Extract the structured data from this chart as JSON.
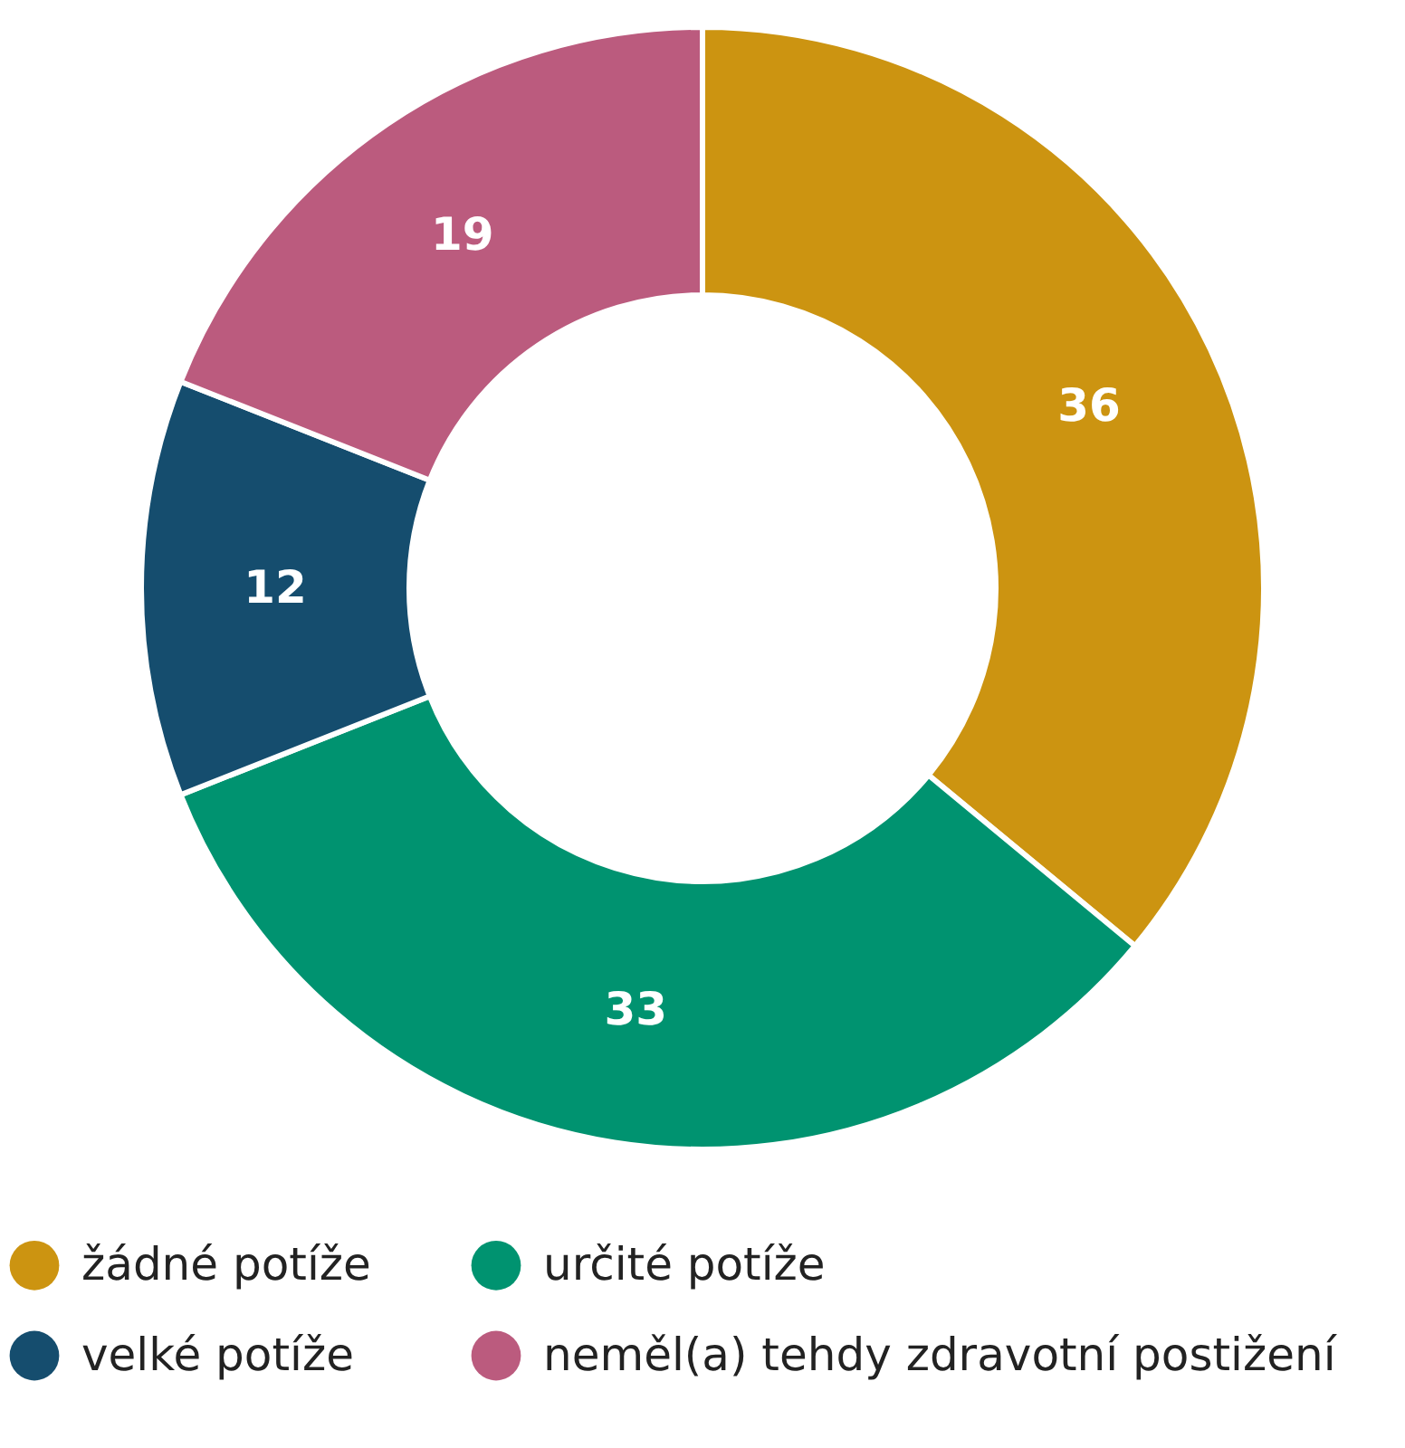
{
  "chart_data": {
    "type": "donut",
    "categories": [
      "žádné potíže",
      "určité potíže",
      "velké potíže",
      "neměl(a) tehdy zdravotní postižení"
    ],
    "values": [
      36,
      33,
      12,
      19
    ],
    "colors": [
      "#cc9411",
      "#009370",
      "#154d6e",
      "#bb5b7e"
    ],
    "data_labels": true,
    "legend": "bottom"
  }
}
